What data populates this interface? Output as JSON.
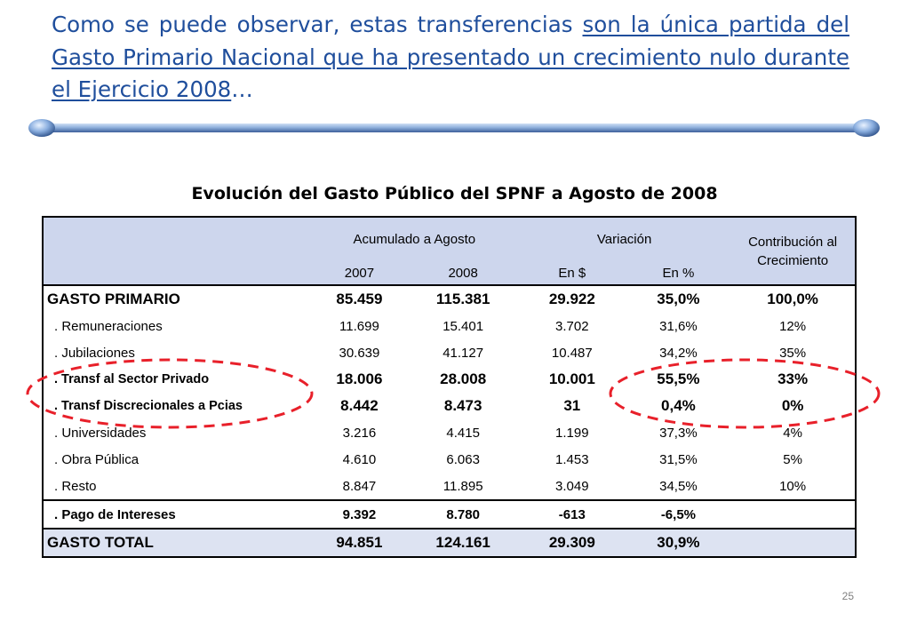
{
  "heading": {
    "part1": "Como se puede observar, estas transferencias ",
    "part2": "son la única partida del Gasto Primario Nacional que ha presentado un crecimiento nulo durante el Ejercicio 2008",
    "part3": "…"
  },
  "table_title": "Evolución del Gasto Público del SPNF a Agosto de 2008",
  "table": {
    "group_headers": {
      "acumulado": "Acumulado a Agosto",
      "variacion": "Variación",
      "contribucion": "Contribución al Crecimiento"
    },
    "columns": [
      "2007",
      "2008",
      "En $",
      "En %"
    ],
    "rows": [
      {
        "label": "GASTO PRIMARIO",
        "v2007": "85.459",
        "v2008": "115.381",
        "var_abs": "29.922",
        "var_pct": "35,0%",
        "contrib": "100,0%"
      },
      {
        "label": ". Remuneraciones",
        "v2007": "11.699",
        "v2008": "15.401",
        "var_abs": "3.702",
        "var_pct": "31,6%",
        "contrib": "12%"
      },
      {
        "label": ". Jubilaciones",
        "v2007": "30.639",
        "v2008": "41.127",
        "var_abs": "10.487",
        "var_pct": "34,2%",
        "contrib": "35%"
      },
      {
        "label": ". Transf al Sector Privado",
        "v2007": "18.006",
        "v2008": "28.008",
        "var_abs": "10.001",
        "var_pct": "55,5%",
        "contrib": "33%"
      },
      {
        "label": ". Transf Discrecionales a Pcias",
        "v2007": "8.442",
        "v2008": "8.473",
        "var_abs": "31",
        "var_pct": "0,4%",
        "contrib": "0%"
      },
      {
        "label": ". Universidades",
        "v2007": "3.216",
        "v2008": "4.415",
        "var_abs": "1.199",
        "var_pct": "37,3%",
        "contrib": "4%"
      },
      {
        "label": ". Obra Pública",
        "v2007": "4.610",
        "v2008": "6.063",
        "var_abs": "1.453",
        "var_pct": "31,5%",
        "contrib": "5%"
      },
      {
        "label": ". Resto",
        "v2007": "8.847",
        "v2008": "11.895",
        "var_abs": "3.049",
        "var_pct": "34,5%",
        "contrib": "10%"
      },
      {
        "label": ". Pago de Intereses",
        "v2007": "9.392",
        "v2008": "8.780",
        "var_abs": "-613",
        "var_pct": "-6,5%",
        "contrib": ""
      },
      {
        "label": "GASTO TOTAL",
        "v2007": "94.851",
        "v2008": "124.161",
        "var_abs": "29.309",
        "var_pct": "30,9%",
        "contrib": ""
      }
    ]
  },
  "page_number": "25",
  "colors": {
    "heading": "#1f4e9c",
    "header_fill": "#cdd6ed",
    "total_fill": "#dde3f2",
    "highlight_ellipse": "#e8202a"
  }
}
